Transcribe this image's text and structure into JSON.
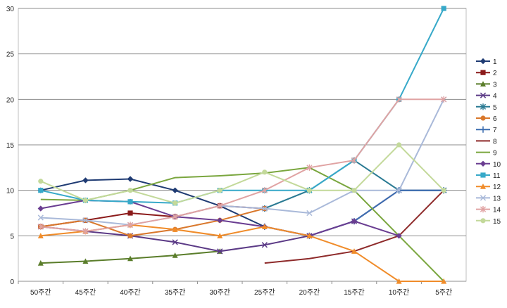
{
  "chart_data": {
    "type": "line",
    "title": "",
    "xlabel": "",
    "ylabel": "",
    "categories": [
      "50주간",
      "45주간",
      "40주간",
      "35주간",
      "30주간",
      "25주간",
      "20주간",
      "15주간",
      "10주간",
      "5주간"
    ],
    "ylim": [
      0,
      30
    ],
    "yticks": [
      0,
      5,
      10,
      15,
      20,
      25,
      30
    ],
    "grid": "horizontal",
    "legend_position": "right",
    "series": [
      {
        "name": "1",
        "color": "#1f3b73",
        "marker": "diamond",
        "values": [
          10,
          11.1,
          11.25,
          10,
          8.3,
          6,
          null,
          null,
          null,
          null
        ]
      },
      {
        "name": "2",
        "color": "#8b1a1a",
        "marker": "square",
        "values": [
          6,
          6.7,
          7.5,
          7.1,
          8.3,
          8,
          null,
          null,
          null,
          null
        ]
      },
      {
        "name": "3",
        "color": "#5a7d2a",
        "marker": "triangle",
        "values": [
          2,
          2.2,
          2.5,
          2.85,
          3.3,
          null,
          null,
          null,
          null,
          null
        ]
      },
      {
        "name": "4",
        "color": "#5b3a86",
        "marker": "x",
        "values": [
          6,
          5.5,
          5,
          4.3,
          3.3,
          4,
          5,
          6.6,
          10,
          10
        ]
      },
      {
        "name": "5",
        "color": "#2a7a93",
        "marker": "star",
        "values": [
          null,
          null,
          null,
          null,
          null,
          8,
          10,
          13.3,
          10,
          10
        ]
      },
      {
        "name": "6",
        "color": "#d9782c",
        "marker": "circle",
        "values": [
          6,
          6.7,
          5,
          5.7,
          6.7,
          8,
          null,
          null,
          null,
          null
        ]
      },
      {
        "name": "7",
        "color": "#3c6db0",
        "marker": "plus",
        "values": [
          null,
          null,
          null,
          null,
          null,
          6,
          5,
          6.6,
          10,
          10
        ]
      },
      {
        "name": "8",
        "color": "#8e2a2a",
        "marker": "none",
        "values": [
          null,
          null,
          null,
          null,
          null,
          2,
          2.5,
          3.3,
          5,
          10
        ]
      },
      {
        "name": "9",
        "color": "#7aa63e",
        "marker": "none",
        "values": [
          9,
          8.9,
          10,
          11.4,
          11.6,
          11.9,
          12.5,
          10,
          5,
          0
        ]
      },
      {
        "name": "10",
        "color": "#6a3d91",
        "marker": "diamond",
        "values": [
          8,
          8.9,
          8.75,
          7.1,
          6.7,
          6,
          5,
          6.6,
          5,
          null
        ]
      },
      {
        "name": "11",
        "color": "#37a9c9",
        "marker": "square",
        "values": [
          10,
          8.9,
          8.75,
          8.6,
          10,
          10,
          10,
          13.3,
          20,
          30
        ]
      },
      {
        "name": "12",
        "color": "#f08c2a",
        "marker": "triangle",
        "values": [
          5,
          5.5,
          6.2,
          5.7,
          5,
          6,
          5,
          3.3,
          0,
          0
        ]
      },
      {
        "name": "13",
        "color": "#a9b9d9",
        "marker": "x",
        "values": [
          7,
          6.7,
          6.2,
          7.1,
          8.3,
          8,
          7.5,
          10,
          10,
          20
        ]
      },
      {
        "name": "14",
        "color": "#e0a3a3",
        "marker": "star",
        "values": [
          6,
          5.5,
          6.2,
          7.1,
          8.3,
          10,
          12.5,
          13.3,
          20,
          20
        ]
      },
      {
        "name": "15",
        "color": "#c3d99a",
        "marker": "circle",
        "values": [
          11,
          8.9,
          10,
          8.6,
          10,
          12,
          10,
          10,
          15,
          10
        ]
      }
    ]
  }
}
